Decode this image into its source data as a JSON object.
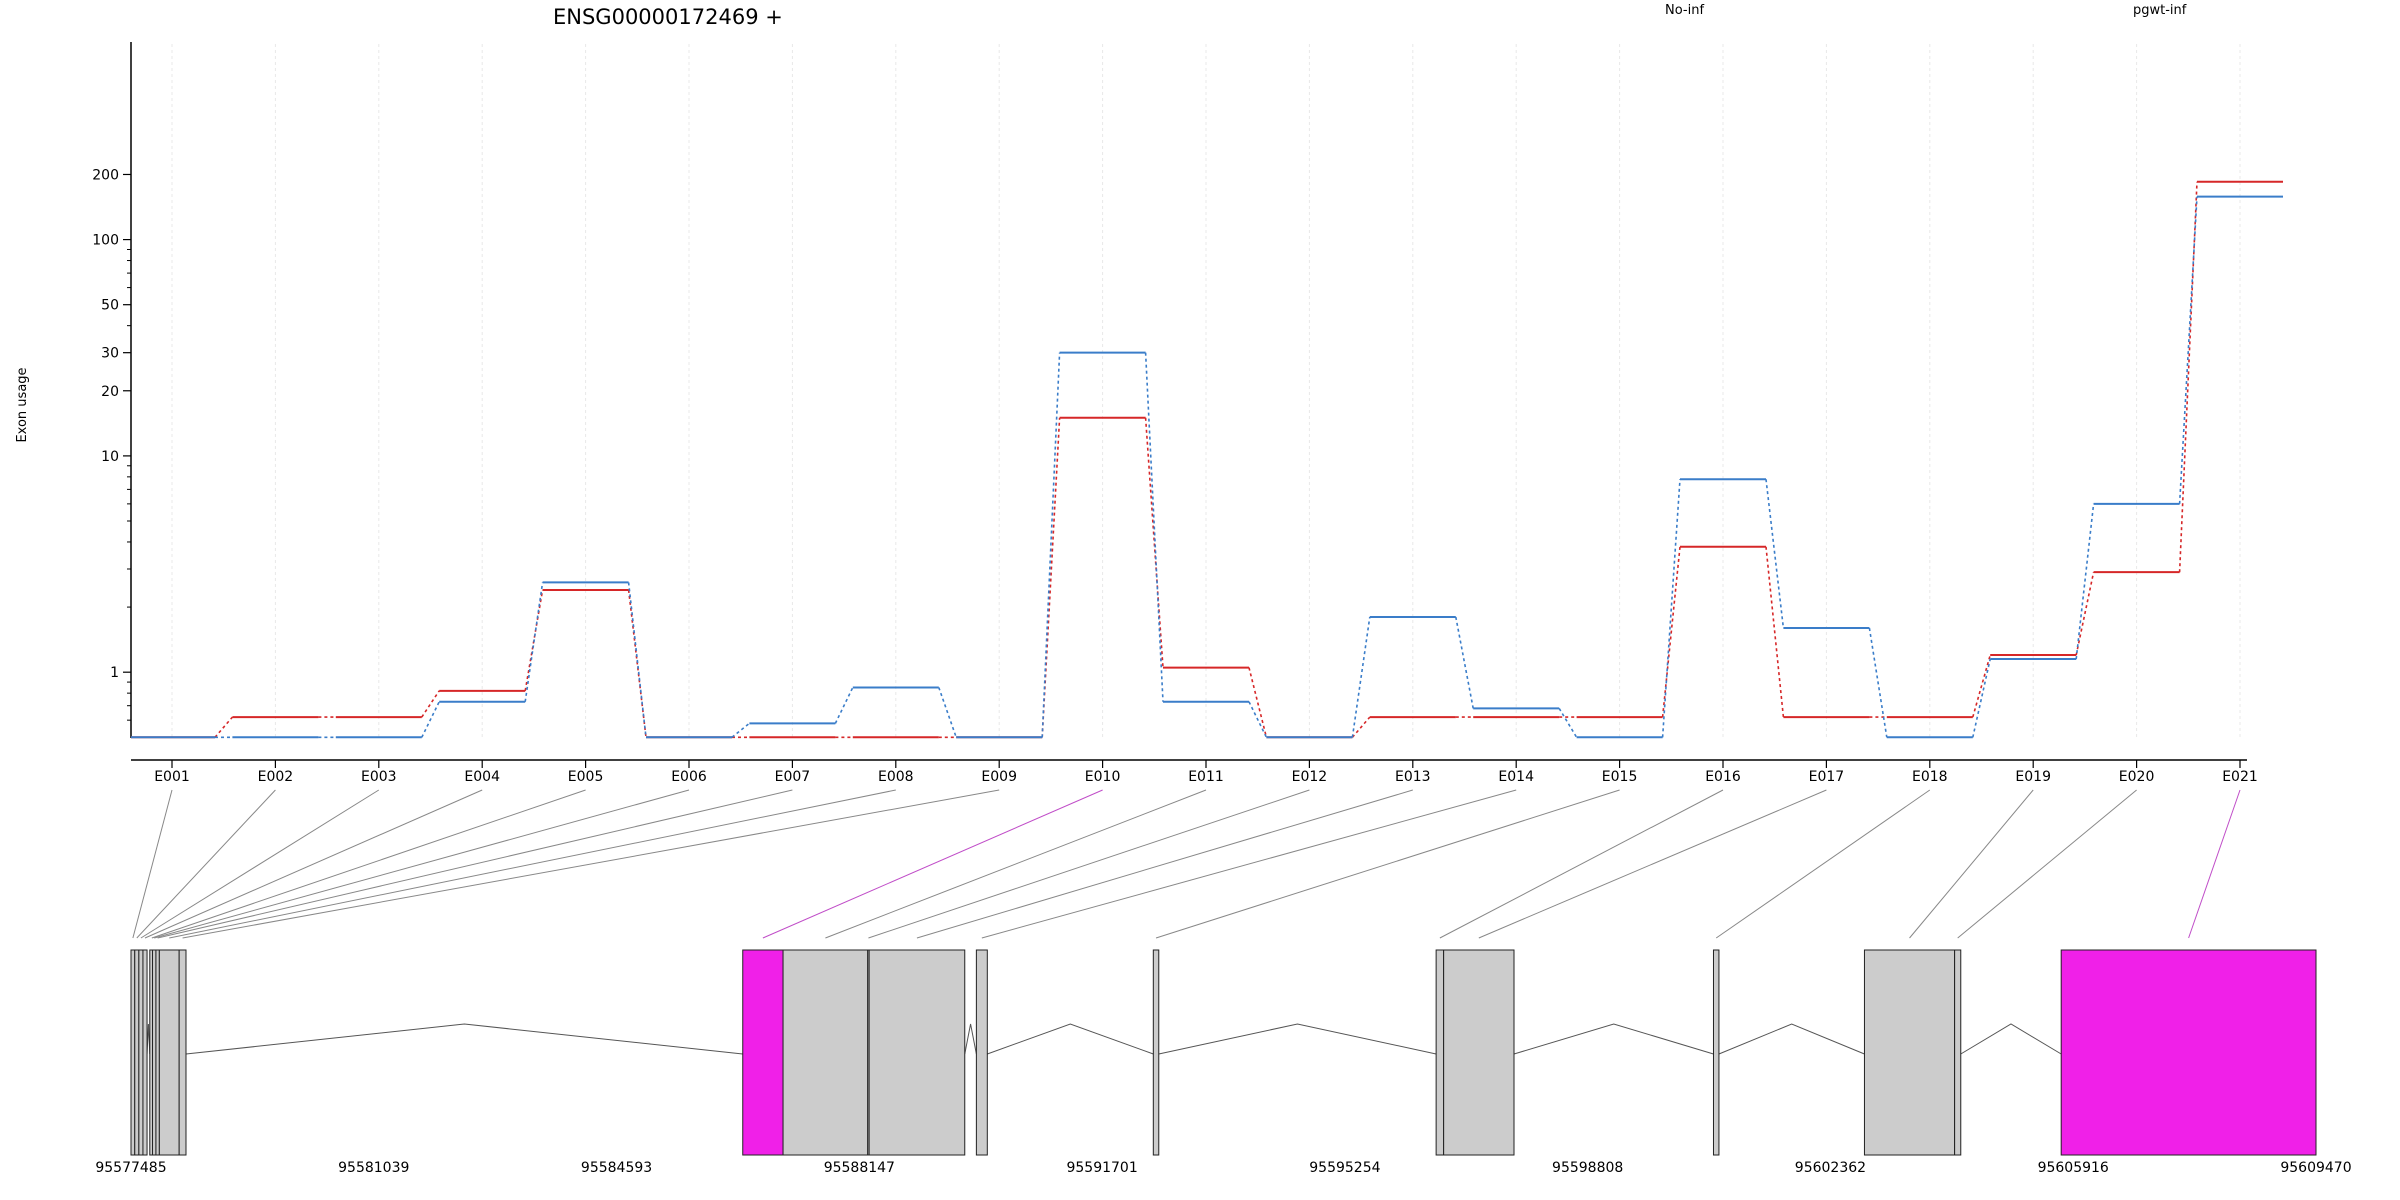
{
  "chart_data": {
    "type": "line",
    "title": "ENSG00000172469 +",
    "ylabel": "Exon usage",
    "xlabel": "",
    "y_scale": "log",
    "ylim": [
      0.5,
      240
    ],
    "y_ticks": [
      1,
      10,
      20,
      30,
      50,
      100,
      200
    ],
    "grid": true,
    "legend_position": "top-right",
    "categories": [
      "E001",
      "E002",
      "E003",
      "E004",
      "E005",
      "E006",
      "E007",
      "E008",
      "E009",
      "E010",
      "E011",
      "E012",
      "E013",
      "E014",
      "E015",
      "E016",
      "E017",
      "E018",
      "E019",
      "E020",
      "E021"
    ],
    "series": [
      {
        "name": "No-inf",
        "color": "#d62728",
        "values": [
          0.5,
          0.62,
          0.62,
          0.82,
          2.4,
          0.5,
          0.5,
          0.5,
          0.5,
          15,
          1.05,
          0.5,
          0.62,
          0.62,
          0.62,
          3.8,
          0.62,
          0.62,
          1.2,
          2.9,
          185
        ]
      },
      {
        "name": "pgwt-inf",
        "color": "#3a7dc9",
        "values": [
          0.5,
          0.5,
          0.5,
          0.73,
          2.6,
          0.5,
          0.58,
          0.85,
          0.5,
          30,
          0.73,
          0.5,
          1.8,
          0.68,
          0.5,
          7.8,
          1.6,
          0.5,
          1.15,
          6.0,
          158
        ]
      }
    ],
    "gene_model": {
      "coordinate_labels": [
        "95577485",
        "95581039",
        "95584593",
        "95588147",
        "95591701",
        "95595254",
        "95598808",
        "95602362",
        "95605916",
        "95609470"
      ],
      "range": [
        95577485,
        95609470
      ],
      "highlight_color": "#f020e8",
      "exon_fill": "#cccccc",
      "exons": [
        {
          "id": "E001",
          "start": 95577485,
          "end": 95577540,
          "highlight": false
        },
        {
          "id": "E002",
          "start": 95577540,
          "end": 95577600,
          "highlight": false
        },
        {
          "id": "E003",
          "start": 95577600,
          "end": 95577660,
          "highlight": false
        },
        {
          "id": "E004",
          "start": 95577660,
          "end": 95577720,
          "highlight": false
        },
        {
          "id": "E005",
          "start": 95577760,
          "end": 95577820,
          "highlight": false
        },
        {
          "id": "E006",
          "start": 95577800,
          "end": 95577850,
          "highlight": false
        },
        {
          "id": "E007",
          "start": 95577850,
          "end": 95577900,
          "highlight": false
        },
        {
          "id": "E008",
          "start": 95577900,
          "end": 95578190,
          "highlight": false
        },
        {
          "id": "E009",
          "start": 95578190,
          "end": 95578290,
          "highlight": false
        },
        {
          "id": "E010",
          "start": 95586440,
          "end": 95587030,
          "highlight": true
        },
        {
          "id": "E011",
          "start": 95587030,
          "end": 95588270,
          "highlight": false
        },
        {
          "id": "E012",
          "start": 95588270,
          "end": 95588290,
          "highlight": false
        },
        {
          "id": "E013",
          "start": 95588290,
          "end": 95589690,
          "highlight": false
        },
        {
          "id": "E014",
          "start": 95589860,
          "end": 95590020,
          "highlight": false
        },
        {
          "id": "E015",
          "start": 95592450,
          "end": 95592530,
          "highlight": false
        },
        {
          "id": "E016",
          "start": 95596590,
          "end": 95596700,
          "highlight": false
        },
        {
          "id": "E017",
          "start": 95596700,
          "end": 95597730,
          "highlight": false
        },
        {
          "id": "E018",
          "start": 95600650,
          "end": 95600730,
          "highlight": false
        },
        {
          "id": "E019",
          "start": 95602860,
          "end": 95604180,
          "highlight": false
        },
        {
          "id": "E020",
          "start": 95604180,
          "end": 95604270,
          "highlight": false
        },
        {
          "id": "E021",
          "start": 95605740,
          "end": 95609470,
          "highlight": true
        }
      ]
    }
  }
}
